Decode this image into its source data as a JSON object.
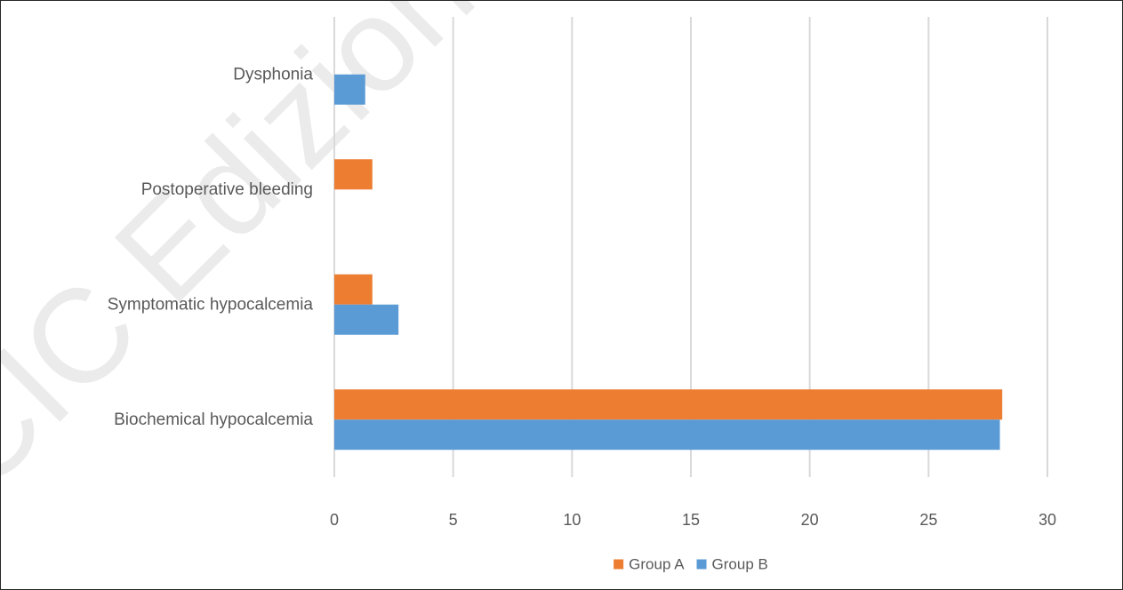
{
  "chart_data": {
    "type": "bar",
    "orientation": "horizontal",
    "categories": [
      "Biochemical hypocalcemia",
      "Symptomatic hypocalcemia",
      "Postoperative bleeding",
      "Dysphonia"
    ],
    "series": [
      {
        "name": "Group A",
        "color": "#ED7D31",
        "values": [
          28.1,
          1.6,
          1.6,
          0
        ]
      },
      {
        "name": "Group B",
        "color": "#5B9BD5",
        "values": [
          28.0,
          2.7,
          0,
          1.3
        ]
      }
    ],
    "xlim": [
      0,
      30
    ],
    "x_ticks": [
      0,
      5,
      10,
      15,
      20,
      25,
      30
    ],
    "title": "",
    "xlabel": "",
    "ylabel": "",
    "grid": "vertical",
    "legend_position": "bottom"
  },
  "watermark": {
    "text": "CIC Edizioni In"
  }
}
